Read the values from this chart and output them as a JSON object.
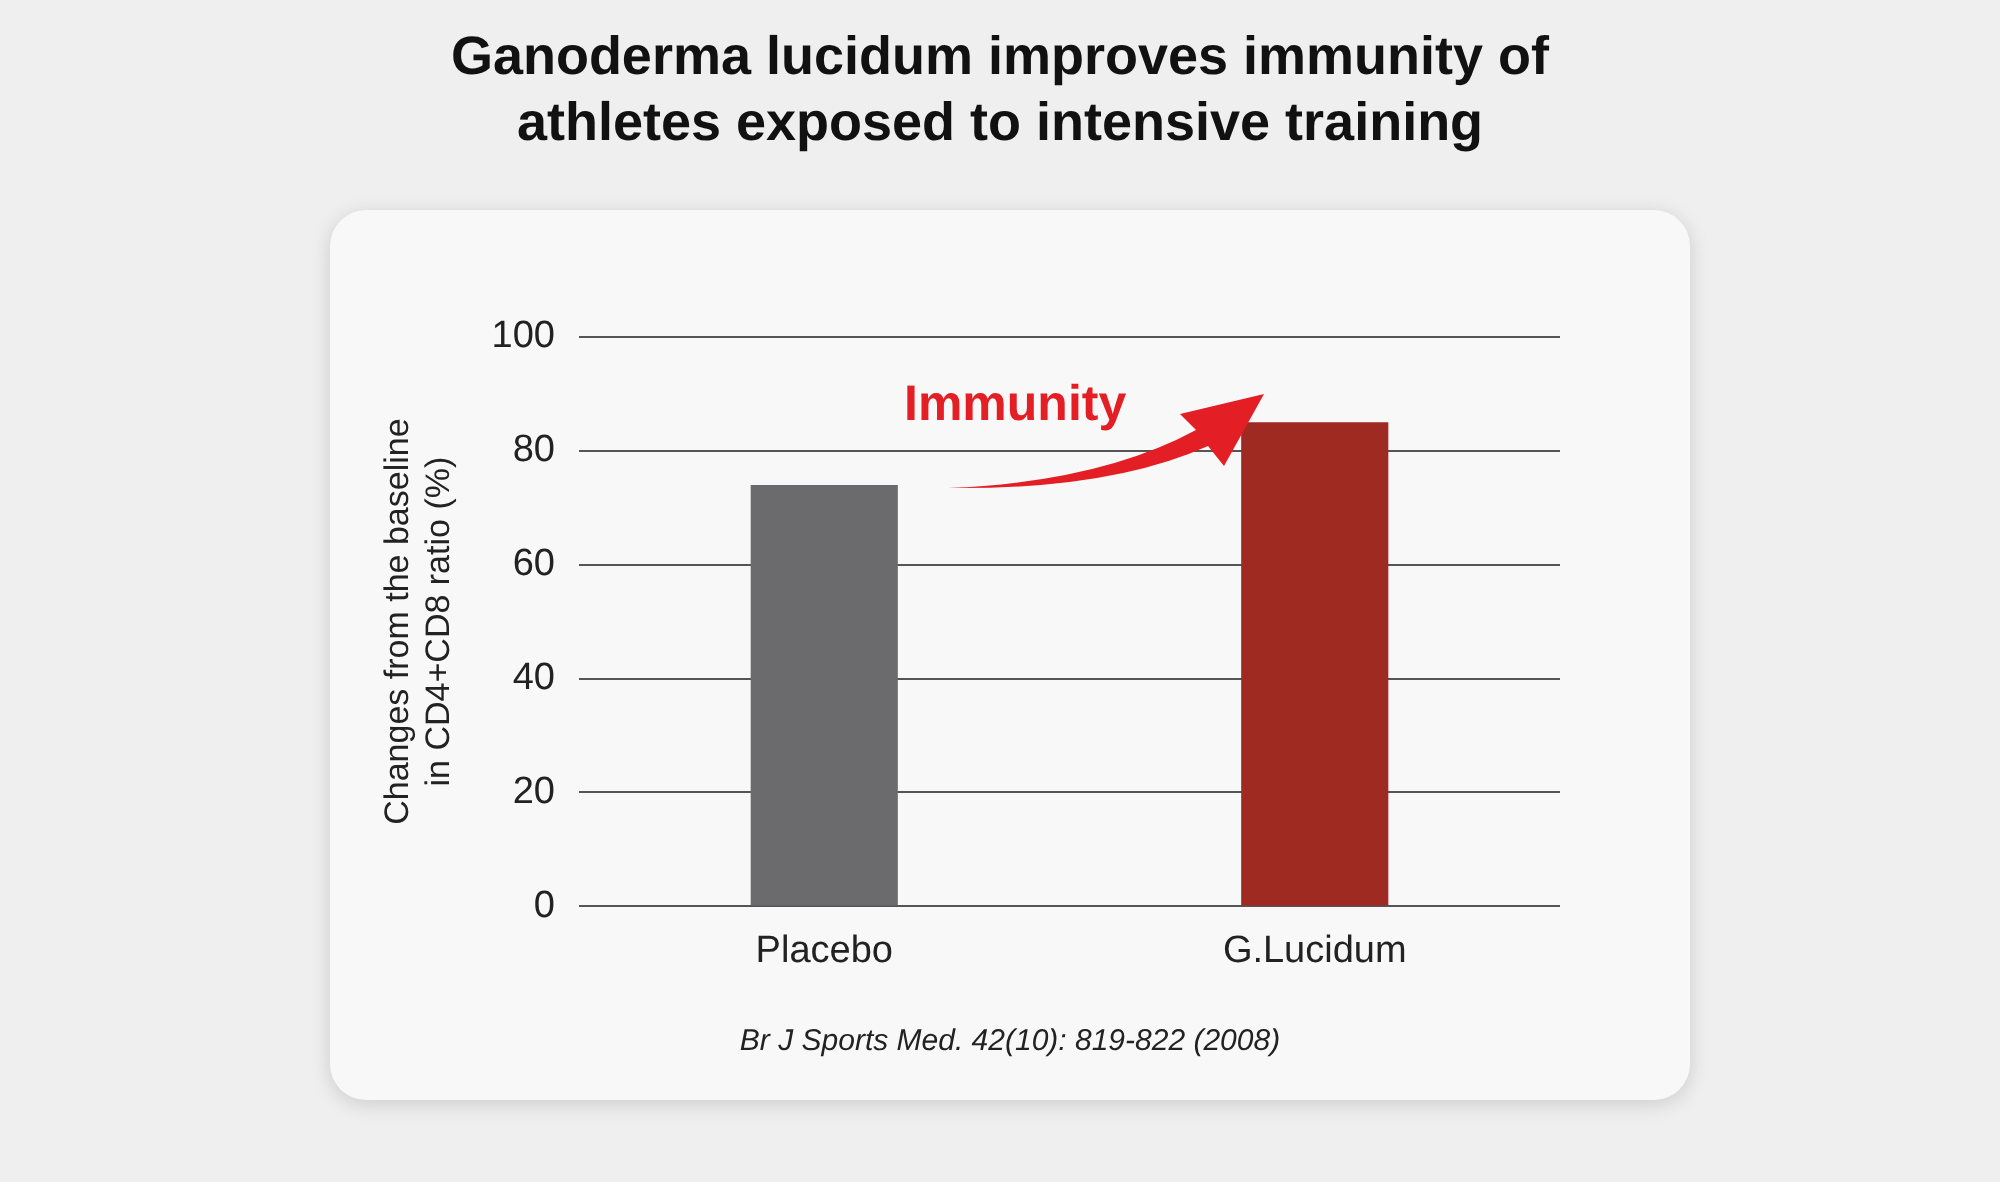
{
  "chart_data": {
    "type": "bar",
    "title": "Ganoderma lucidum improves immunity of athletes exposed to intensive training",
    "ylabel": "Changes from the baseline in CD4+CD8 ratio (%)",
    "categories": [
      "Placebo",
      "G.Lucidum"
    ],
    "values": [
      74,
      85
    ],
    "colors": [
      "#6b6b6e",
      "#9e2a22"
    ],
    "ylim": [
      0,
      100
    ],
    "yticks": [
      0,
      20,
      40,
      60,
      80,
      100
    ],
    "grid": "y",
    "annotations": [
      "Immunity",
      "Br J Sports Med. 42(10): 819-822 (2008)"
    ]
  }
}
